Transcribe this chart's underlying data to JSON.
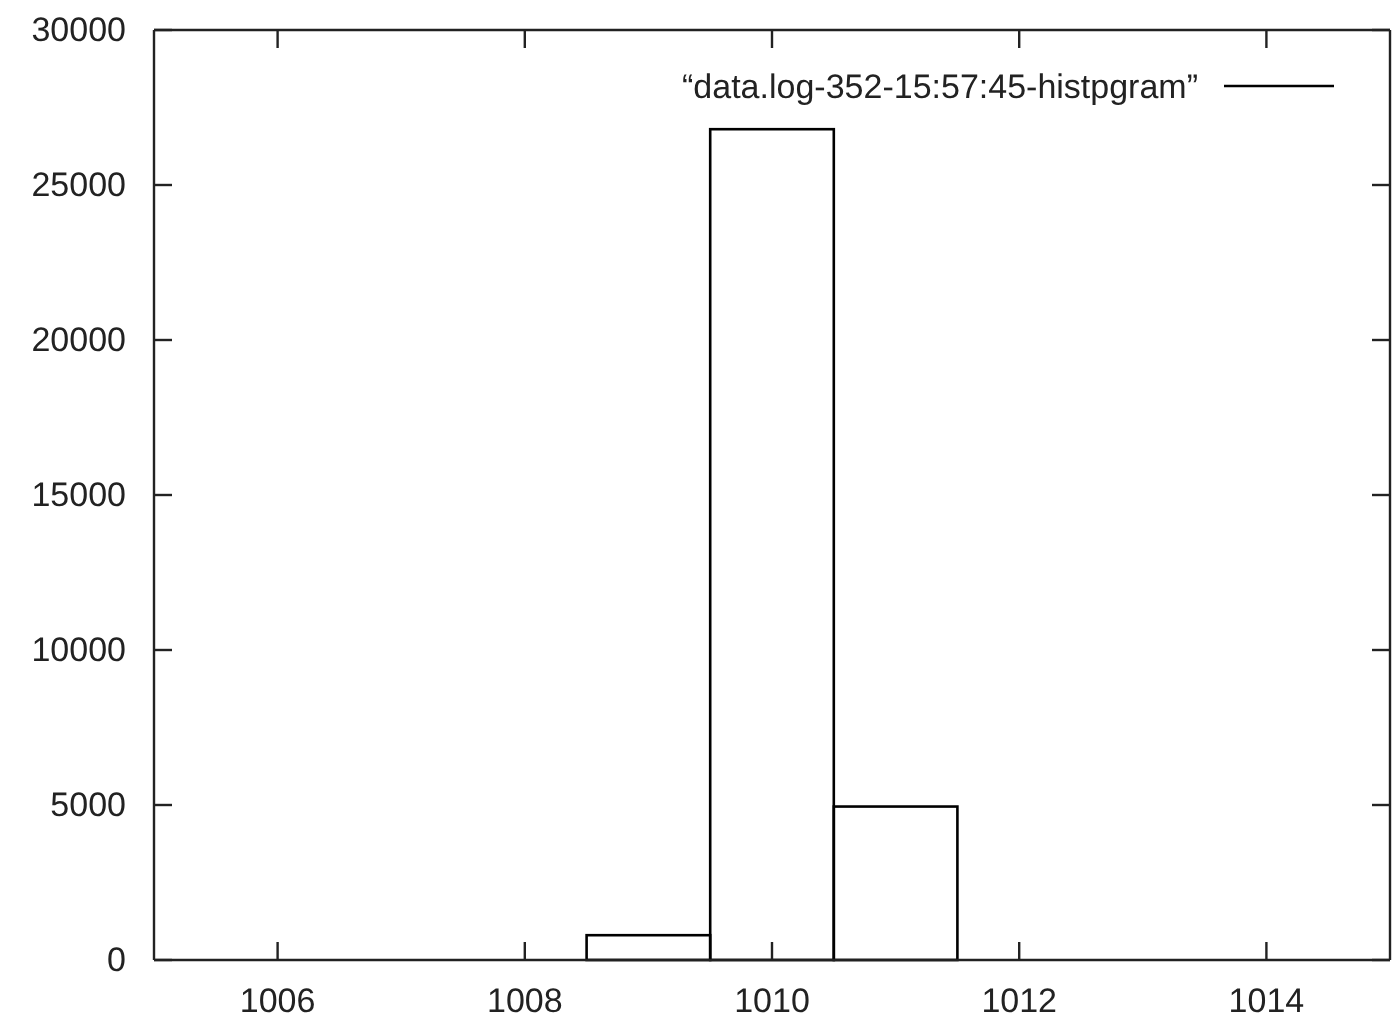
{
  "chart_data": {
    "type": "histogram",
    "bins": [
      1008.5,
      1009.5,
      1010.5,
      1011.5
    ],
    "series": [
      {
        "name": "“data.log-352-15:57:45-histpgram”",
        "color": "#000000",
        "values": [
          800,
          26800,
          4950
        ]
      }
    ],
    "xlim": [
      1005,
      1015
    ],
    "xticks": [
      1006,
      1008,
      1010,
      1012,
      1014
    ],
    "ylim": [
      0,
      30000
    ],
    "yticks": [
      0,
      5000,
      10000,
      15000,
      20000,
      25000,
      30000
    ],
    "grid": false,
    "legend": "top right"
  }
}
